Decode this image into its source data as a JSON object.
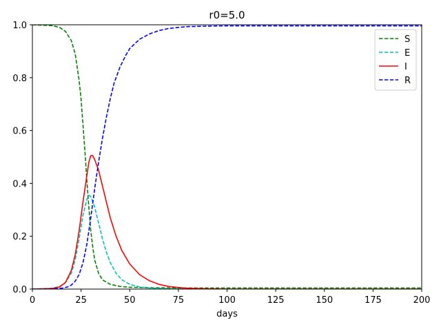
{
  "chart_data": {
    "type": "line",
    "title": "r0=5.0",
    "xlabel": "days",
    "ylabel": "",
    "xlim": [
      0,
      200
    ],
    "ylim": [
      0,
      1.0
    ],
    "xticks": [
      0,
      25,
      50,
      75,
      100,
      125,
      150,
      175,
      200
    ],
    "yticks": [
      0.0,
      0.2,
      0.4,
      0.6,
      0.8,
      1.0
    ],
    "ytick_labels": [
      "0.0",
      "0.2",
      "0.4",
      "0.6",
      "0.8",
      "1.0"
    ],
    "grid": false,
    "legend_position": "top-right",
    "series": [
      {
        "name": "S",
        "color": "#008000",
        "dash": "dashed",
        "points": [
          [
            0,
            1.0
          ],
          [
            10,
            0.997
          ],
          [
            14,
            0.99
          ],
          [
            17,
            0.975
          ],
          [
            20,
            0.94
          ],
          [
            22,
            0.89
          ],
          [
            24,
            0.79
          ],
          [
            25,
            0.72
          ],
          [
            26,
            0.62
          ],
          [
            27,
            0.52
          ],
          [
            28,
            0.41
          ],
          [
            29,
            0.31
          ],
          [
            30,
            0.22
          ],
          [
            31,
            0.16
          ],
          [
            32,
            0.11
          ],
          [
            34,
            0.06
          ],
          [
            36,
            0.035
          ],
          [
            40,
            0.018
          ],
          [
            45,
            0.01
          ],
          [
            50,
            0.007
          ],
          [
            60,
            0.005
          ],
          [
            80,
            0.004
          ],
          [
            120,
            0.004
          ],
          [
            200,
            0.004
          ]
        ]
      },
      {
        "name": "E",
        "color": "#00BFBF",
        "dash": "dashed",
        "points": [
          [
            0,
            0.0
          ],
          [
            10,
            0.003
          ],
          [
            14,
            0.01
          ],
          [
            17,
            0.025
          ],
          [
            20,
            0.06
          ],
          [
            22,
            0.11
          ],
          [
            24,
            0.19
          ],
          [
            26,
            0.28
          ],
          [
            28,
            0.34
          ],
          [
            29,
            0.355
          ],
          [
            30,
            0.35
          ],
          [
            32,
            0.31
          ],
          [
            34,
            0.25
          ],
          [
            36,
            0.19
          ],
          [
            38,
            0.14
          ],
          [
            40,
            0.1
          ],
          [
            43,
            0.06
          ],
          [
            46,
            0.035
          ],
          [
            50,
            0.018
          ],
          [
            55,
            0.008
          ],
          [
            60,
            0.004
          ],
          [
            70,
            0.001
          ],
          [
            90,
            0.0
          ],
          [
            200,
            0.0
          ]
        ]
      },
      {
        "name": "I",
        "color": "#FF0000",
        "dash": "solid",
        "points": [
          [
            0,
            0.0
          ],
          [
            10,
            0.002
          ],
          [
            14,
            0.008
          ],
          [
            17,
            0.025
          ],
          [
            20,
            0.07
          ],
          [
            22,
            0.13
          ],
          [
            24,
            0.22
          ],
          [
            26,
            0.33
          ],
          [
            28,
            0.43
          ],
          [
            29,
            0.48
          ],
          [
            30,
            0.505
          ],
          [
            31,
            0.505
          ],
          [
            32,
            0.49
          ],
          [
            34,
            0.45
          ],
          [
            36,
            0.39
          ],
          [
            38,
            0.33
          ],
          [
            40,
            0.27
          ],
          [
            43,
            0.2
          ],
          [
            46,
            0.145
          ],
          [
            50,
            0.095
          ],
          [
            55,
            0.055
          ],
          [
            60,
            0.032
          ],
          [
            65,
            0.018
          ],
          [
            70,
            0.01
          ],
          [
            75,
            0.006
          ],
          [
            80,
            0.003
          ],
          [
            90,
            0.001
          ],
          [
            100,
            0.0
          ],
          [
            200,
            0.0
          ]
        ]
      },
      {
        "name": "R",
        "color": "#0000FF",
        "dash": "dashed",
        "points": [
          [
            0,
            0.0
          ],
          [
            10,
            0.0
          ],
          [
            15,
            0.003
          ],
          [
            18,
            0.008
          ],
          [
            20,
            0.015
          ],
          [
            22,
            0.03
          ],
          [
            24,
            0.055
          ],
          [
            26,
            0.1
          ],
          [
            28,
            0.17
          ],
          [
            30,
            0.27
          ],
          [
            32,
            0.38
          ],
          [
            34,
            0.48
          ],
          [
            36,
            0.57
          ],
          [
            38,
            0.65
          ],
          [
            40,
            0.72
          ],
          [
            42,
            0.78
          ],
          [
            45,
            0.84
          ],
          [
            48,
            0.885
          ],
          [
            50,
            0.91
          ],
          [
            55,
            0.945
          ],
          [
            60,
            0.965
          ],
          [
            65,
            0.978
          ],
          [
            70,
            0.986
          ],
          [
            75,
            0.99
          ],
          [
            80,
            0.993
          ],
          [
            90,
            0.995
          ],
          [
            100,
            0.996
          ],
          [
            120,
            0.996
          ],
          [
            150,
            0.996
          ],
          [
            200,
            0.996
          ]
        ]
      }
    ]
  }
}
